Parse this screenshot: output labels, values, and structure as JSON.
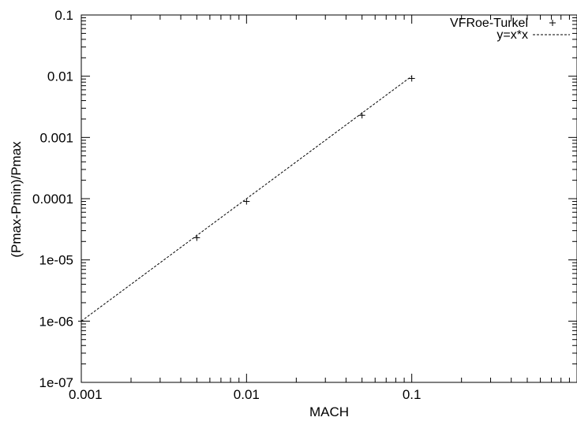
{
  "chart_data": {
    "type": "scatter",
    "xlabel": "MACH",
    "ylabel": "(Pmax-Pmin)/Pmax",
    "xscale": "log",
    "yscale": "log",
    "xlim": [
      0.001,
      1
    ],
    "ylim": [
      1e-07,
      0.1
    ],
    "x_ticks": [
      {
        "value": 0.001,
        "label": "0.001"
      },
      {
        "value": 0.01,
        "label": "0.01"
      },
      {
        "value": 0.1,
        "label": "0.1"
      }
    ],
    "y_ticks": [
      {
        "value": 1e-07,
        "label": "1e-07"
      },
      {
        "value": 1e-06,
        "label": "1e-06"
      },
      {
        "value": 1e-05,
        "label": "1e-05"
      },
      {
        "value": 0.0001,
        "label": "0.0001"
      },
      {
        "value": 0.001,
        "label": "0.001"
      },
      {
        "value": 0.01,
        "label": "0.01"
      },
      {
        "value": 0.1,
        "label": "0.1"
      }
    ],
    "legend_position": "top-right",
    "grid": false,
    "series": [
      {
        "name": "VFRoe-Turkel",
        "kind": "points",
        "marker": "+",
        "x": [
          0.001,
          0.005,
          0.01,
          0.05,
          0.1
        ],
        "y": [
          1e-06,
          2.3e-05,
          9e-05,
          0.0023,
          0.0092
        ]
      },
      {
        "name": "y=x*x",
        "kind": "line",
        "dash": "dashed",
        "x": [
          0.001,
          0.1
        ],
        "y": [
          1e-06,
          0.01
        ]
      }
    ]
  }
}
